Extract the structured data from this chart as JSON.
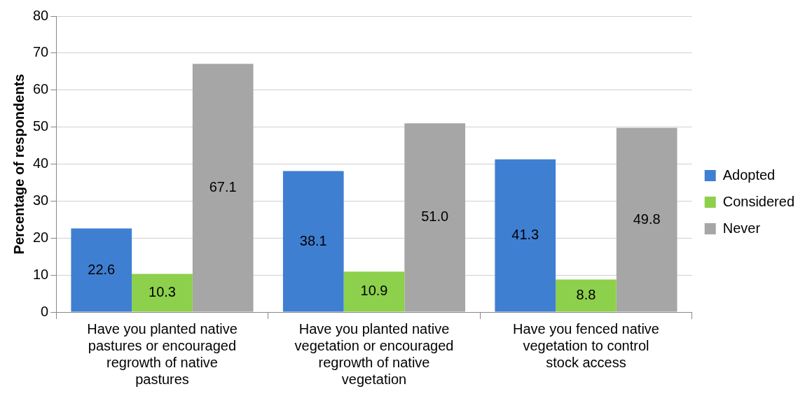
{
  "chart_data": {
    "type": "bar",
    "ylabel": "Percentage of respondents",
    "categories": [
      "Have you planted native pastures or encouraged regrowth of native pastures",
      "Have you planted native vegetation or encouraged regrowth of native vegetation",
      "Have you fenced native vegetation to control stock access"
    ],
    "series": [
      {
        "name": "Adopted",
        "color": "#3f7fd2",
        "values": [
          22.6,
          38.1,
          41.3
        ],
        "value_labels": [
          "22.6",
          "38.1",
          "41.3"
        ]
      },
      {
        "name": "Considered",
        "color": "#8dd04c",
        "values": [
          10.3,
          10.9,
          8.8
        ],
        "value_labels": [
          "10.3",
          "10.9",
          "8.8"
        ]
      },
      {
        "name": "Never",
        "color": "#a6a6a6",
        "values": [
          67.1,
          51.0,
          49.8
        ],
        "value_labels": [
          "67.1",
          "51.0",
          "49.8"
        ]
      }
    ],
    "ylim": [
      0,
      80
    ],
    "yticks": [
      0,
      10,
      20,
      30,
      40,
      50,
      60,
      70,
      80
    ],
    "grid": "y",
    "legend": "right"
  }
}
